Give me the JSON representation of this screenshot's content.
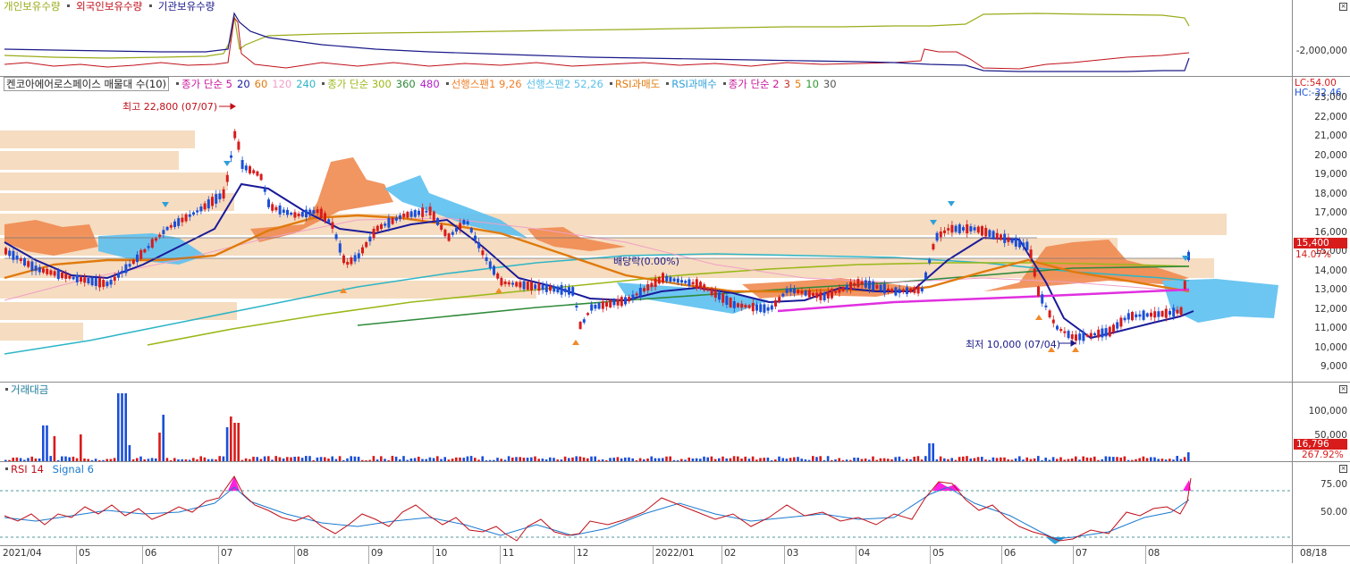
{
  "holdings": {
    "legend": [
      {
        "label": "개인보유수량",
        "color": "#9aab19"
      },
      {
        "label": "외국인보유수량",
        "color": "#c0101a"
      },
      {
        "label": "기관보유수량",
        "color": "#1a1a8a"
      }
    ],
    "tick": "-2,000,000"
  },
  "price": {
    "title": "켄코아에어로스페이스 매물대 수(10)",
    "legend": [
      {
        "label": "종가 단순 5",
        "color": "#c8169b"
      },
      {
        "label": "20",
        "color": "#1a1a9a"
      },
      {
        "label": "60",
        "color": "#e07a0c"
      },
      {
        "label": "120",
        "color": "#f0a0c8"
      },
      {
        "label": "240",
        "color": "#2fb6c6"
      },
      {
        "label": "종가 단순 300",
        "color": "#9ab818"
      },
      {
        "label": "360",
        "color": "#2f8a3a"
      },
      {
        "label": "480",
        "color": "#b020c8"
      },
      {
        "label": "선행스팬1 9,26",
        "color": "#f0802a"
      },
      {
        "label": "선행스팬2 52,26",
        "color": "#5cc0e8"
      },
      {
        "label": "RSI과매도",
        "color": "#e07a0c"
      },
      {
        "label": "RSI과매수",
        "color": "#2fa0d8"
      },
      {
        "label": "종가 단순 2",
        "color": "#c8169b"
      },
      {
        "label": "3",
        "color": "#c03030"
      },
      {
        "label": "5",
        "color": "#e07a0c"
      },
      {
        "label": "10",
        "color": "#2f9a2f"
      },
      {
        "label": "30",
        "color": "#555555"
      }
    ],
    "lc": "LC:54.00",
    "hc": "HC:-32.46",
    "ticks": [
      "23,000",
      "22,000",
      "21,000",
      "20,000",
      "19,000",
      "18,000",
      "17,000",
      "16,000",
      "15,000",
      "14,000",
      "13,000",
      "12,000",
      "11,000",
      "10,000",
      "9,000"
    ],
    "current": "15,400",
    "change": "14.07%",
    "high_label": "최고 22,800 (07/07)",
    "low_label": "최저 10,000 (07/04)",
    "dividend_label": "배당락(0.00%)"
  },
  "volume": {
    "title": "거래대금",
    "ticks": [
      "100,000",
      "50,000"
    ],
    "current": "16,796",
    "change": "267.92%"
  },
  "rsi": {
    "legend": [
      {
        "label": "RSI 14",
        "color": "#c0101a"
      },
      {
        "label": "Signal 6",
        "color": "#1a7ad0"
      }
    ],
    "ticks": [
      "75.00",
      "50.00"
    ]
  },
  "xaxis": {
    "labels": [
      "2021/04",
      "05",
      "06",
      "07",
      "08",
      "09",
      "10",
      "11",
      "12",
      "2022/01",
      "02",
      "03",
      "04",
      "05",
      "06",
      "07",
      "08"
    ],
    "right": "08/18"
  },
  "colors": {
    "up": "#d81b1b",
    "down": "#1a4fd8",
    "cloud_up": "#f08a50",
    "cloud_down": "#5cc0f0",
    "volume_profile": "#f6dcc0"
  }
}
